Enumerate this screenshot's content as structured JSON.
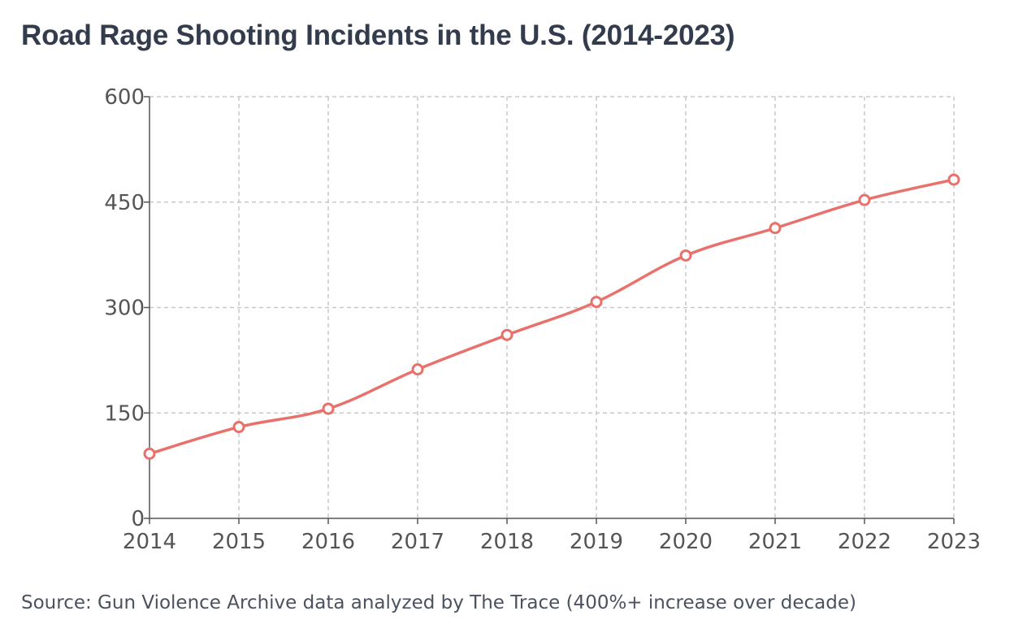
{
  "chart_data": {
    "type": "line",
    "title": "Road Rage Shooting Incidents in the U.S. (2014-2023)",
    "xlabel": "",
    "ylabel": "",
    "x": [
      "2014",
      "2015",
      "2016",
      "2017",
      "2018",
      "2019",
      "2020",
      "2021",
      "2022",
      "2023"
    ],
    "series": [
      {
        "values": [
          92,
          130,
          156,
          212,
          261,
          308,
          374,
          413,
          453,
          482
        ]
      }
    ],
    "ylim": [
      0,
      600
    ],
    "yticks": [
      0,
      150,
      300,
      450,
      600
    ],
    "grid": true,
    "line_color": "#e8716c",
    "point_fill": "#ffffff",
    "source": "Source: Gun Violence Archive data analyzed by The Trace (400%+ increase over decade)"
  }
}
